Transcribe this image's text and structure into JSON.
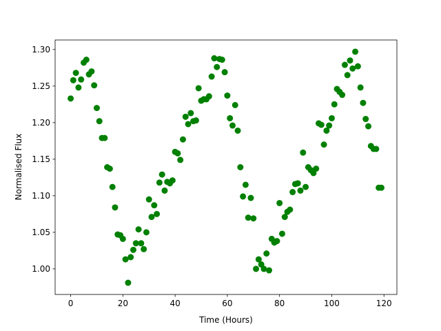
{
  "chart_data": {
    "type": "scatter",
    "xlabel": "Time (Hours)",
    "ylabel": "Normalised Flux",
    "x": [
      0,
      1,
      2,
      3,
      4,
      5,
      6,
      7,
      8,
      9,
      10,
      11,
      12,
      13,
      14,
      15,
      16,
      17,
      18,
      19,
      20,
      21,
      22,
      23,
      24,
      25,
      26,
      27,
      28,
      29,
      30,
      31,
      32,
      33,
      34,
      35,
      36,
      37,
      38,
      39,
      40,
      41,
      42,
      43,
      44,
      45,
      46,
      47,
      48,
      49,
      50,
      51,
      52,
      53,
      54,
      55,
      56,
      57,
      58,
      59,
      60,
      61,
      62,
      63,
      64,
      65,
      66,
      67,
      68,
      69,
      70,
      71,
      72,
      73,
      74,
      75,
      76,
      77,
      78,
      79,
      80,
      81,
      82,
      83,
      84,
      85,
      86,
      87,
      88,
      89,
      90,
      91,
      92,
      93,
      94,
      95,
      96,
      97,
      98,
      99,
      100,
      101,
      102,
      103,
      104,
      105,
      106,
      107,
      108,
      109,
      110,
      111,
      112,
      113,
      114,
      115,
      116,
      117,
      118,
      119
    ],
    "series": [
      {
        "color": "#008000",
        "values": [
          1.233,
          1.258,
          1.268,
          1.248,
          1.259,
          1.282,
          1.286,
          1.266,
          1.27,
          1.251,
          1.22,
          1.202,
          1.179,
          1.179,
          1.139,
          1.137,
          1.112,
          1.084,
          1.047,
          1.046,
          1.041,
          1.013,
          0.981,
          1.016,
          1.026,
          1.035,
          1.054,
          1.035,
          1.027,
          1.05,
          1.095,
          1.071,
          1.087,
          1.075,
          1.118,
          1.129,
          1.107,
          1.119,
          1.117,
          1.121,
          1.16,
          1.158,
          1.149,
          1.177,
          1.208,
          1.198,
          1.213,
          1.202,
          1.203,
          1.247,
          1.23,
          1.232,
          1.232,
          1.236,
          1.263,
          1.288,
          1.276,
          1.287,
          1.286,
          1.269,
          1.237,
          1.206,
          1.196,
          1.224,
          1.189,
          1.139,
          1.099,
          1.115,
          1.07,
          1.097,
          1.069,
          1.0,
          1.013,
          1.006,
          1.0,
          1.021,
          0.998,
          1.041,
          1.036,
          1.038,
          1.09,
          1.048,
          1.071,
          1.078,
          1.081,
          1.105,
          1.116,
          1.117,
          1.107,
          1.159,
          1.112,
          1.139,
          1.135,
          1.131,
          1.137,
          1.199,
          1.197,
          1.17,
          1.189,
          1.196,
          1.206,
          1.225,
          1.246,
          1.242,
          1.238,
          1.279,
          1.265,
          1.285,
          1.274,
          1.297,
          1.277,
          1.248,
          1.227,
          1.205,
          1.195,
          1.168,
          1.164,
          1.164,
          1.111,
          1.111
        ]
      }
    ],
    "xlim": [
      -5.95,
      124.95
    ],
    "ylim": [
      0.965,
      1.313
    ],
    "xticks": [
      0,
      20,
      40,
      60,
      80,
      100,
      120
    ],
    "yticks": [
      {
        "value": 1.0,
        "label": "1.00"
      },
      {
        "value": 1.05,
        "label": "1.05"
      },
      {
        "value": 1.1,
        "label": "1.10"
      },
      {
        "value": 1.15,
        "label": "1.15"
      },
      {
        "value": 1.2,
        "label": "1.20"
      },
      {
        "value": 1.25,
        "label": "1.25"
      },
      {
        "value": 1.3,
        "label": "1.30"
      }
    ]
  }
}
